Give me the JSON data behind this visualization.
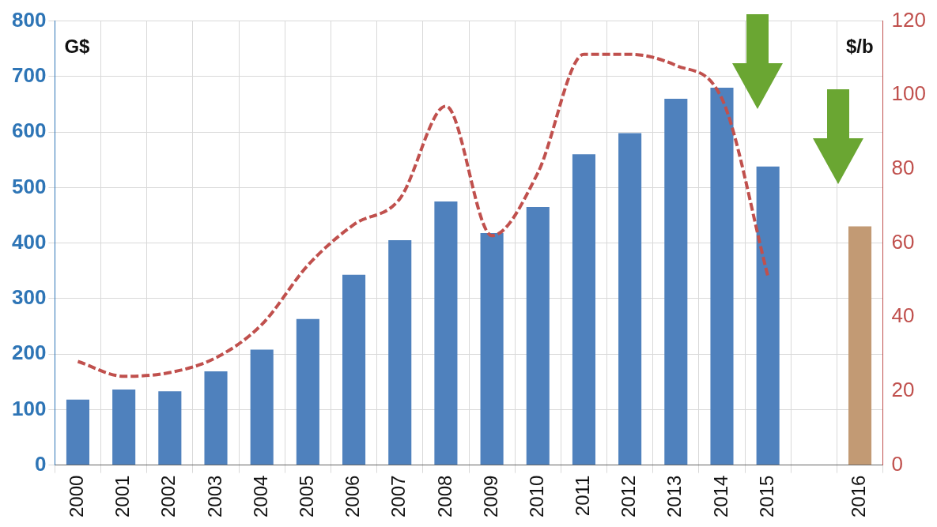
{
  "chart_data": {
    "type": "bar",
    "ylabel": "G$",
    "y2label": "$/b",
    "categories": [
      "2000",
      "2001",
      "2002",
      "2003",
      "2004",
      "2005",
      "2006",
      "2007",
      "2008",
      "2009",
      "2010",
      "2011",
      "2012",
      "2013",
      "2014",
      "2015",
      null,
      "2016"
    ],
    "series": [
      {
        "colors": [
          "#4f81bd",
          "#4f81bd",
          "#4f81bd",
          "#4f81bd",
          "#4f81bd",
          "#4f81bd",
          "#4f81bd",
          "#4f81bd",
          "#4f81bd",
          "#4f81bd",
          "#4f81bd",
          "#4f81bd",
          "#4f81bd",
          "#4f81bd",
          "#4f81bd",
          "#4f81bd",
          "#4f81bd",
          "#c29a74"
        ],
        "values": [
          118,
          136,
          133,
          169,
          208,
          263,
          343,
          405,
          475,
          418,
          465,
          560,
          598,
          660,
          680,
          538,
          null,
          430
        ]
      },
      {
        "type": "line",
        "axis": "y2",
        "color": "#c0504d",
        "line_style": "dashed",
        "marker": "none",
        "values": [
          28,
          24,
          25,
          29,
          38,
          54,
          65,
          72,
          97,
          62,
          79,
          111,
          111,
          108,
          99,
          51,
          null,
          null
        ]
      }
    ],
    "ylim": [
      0,
      800
    ],
    "yticks": [
      0,
      100,
      200,
      300,
      400,
      500,
      600,
      700,
      800
    ],
    "y2lim": [
      0,
      120
    ],
    "y2ticks": [
      0,
      20,
      40,
      60,
      80,
      100,
      120
    ],
    "grid": true,
    "legend": false
  }
}
